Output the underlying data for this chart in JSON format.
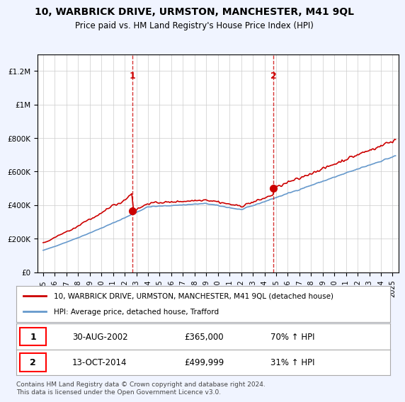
{
  "title": "10, WARBRICK DRIVE, URMSTON, MANCHESTER, M41 9QL",
  "subtitle": "Price paid vs. HM Land Registry's House Price Index (HPI)",
  "purchase1_date": 2002.66,
  "purchase1_price": 365000,
  "purchase1_label": "1",
  "purchase1_text": "30-AUG-2002",
  "purchase1_pct": "70% ↑ HPI",
  "purchase2_date": 2014.78,
  "purchase2_price": 499999,
  "purchase2_label": "2",
  "purchase2_text": "13-OCT-2014",
  "purchase2_pct": "31% ↑ HPI",
  "red_line_color": "#cc0000",
  "blue_line_color": "#6699cc",
  "dashed_line_color": "#cc0000",
  "marker_color": "#cc0000",
  "legend_label_red": "10, WARBRICK DRIVE, URMSTON, MANCHESTER, M41 9QL (detached house)",
  "legend_label_blue": "HPI: Average price, detached house, Trafford",
  "footer": "Contains HM Land Registry data © Crown copyright and database right 2024.\nThis data is licensed under the Open Government Licence v3.0.",
  "ylim": [
    0,
    1300000
  ],
  "yticks": [
    0,
    200000,
    400000,
    600000,
    800000,
    1000000,
    1200000
  ],
  "background_color": "#f0f4ff",
  "plot_bg_color": "#ffffff"
}
